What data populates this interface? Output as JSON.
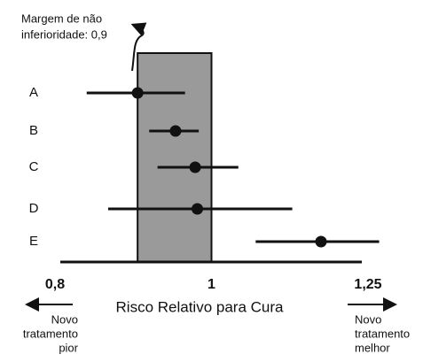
{
  "chart_data": {
    "type": "forest",
    "annotation": [
      "Margem de não",
      "inferioridade: 0,9"
    ],
    "margin": 0.9,
    "x_label": "Risco Relativo para Cura",
    "left_note": [
      "Novo",
      "tratamento",
      "pior"
    ],
    "right_note": [
      "Novo",
      "tratamento",
      "melhor"
    ],
    "categories": [
      "A",
      "B",
      "C",
      "D",
      "E"
    ],
    "values": [
      0.9,
      0.95,
      0.977,
      0.98,
      1.169
    ],
    "lower": [
      0.837,
      0.915,
      0.926,
      0.863,
      1.065
    ],
    "upper": [
      0.963,
      0.982,
      1.039,
      1.122,
      1.27
    ],
    "xlim": [
      0.8,
      1.25
    ],
    "xticks": [
      {
        "value": 0.8,
        "label": "0,8"
      },
      1,
      {
        "value": 1.25,
        "label": "1,25"
      }
    ],
    "log_x": true,
    "box_color": "#9a9a9a",
    "color": "#111111"
  }
}
